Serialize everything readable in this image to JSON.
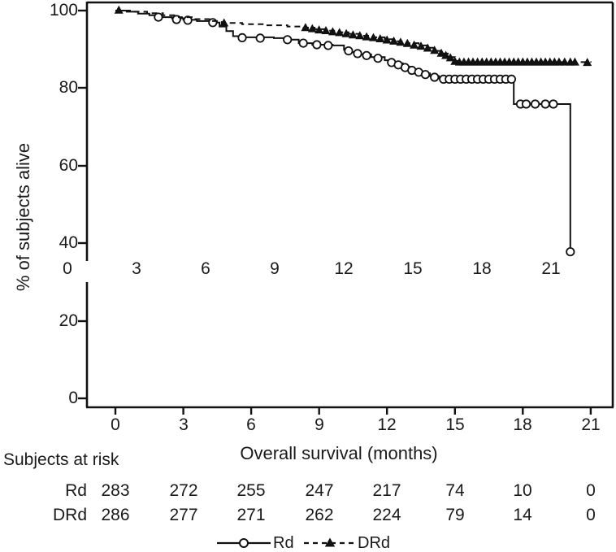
{
  "figure": {
    "y_axis": {
      "title": "% of subjects alive",
      "tick_labels": [
        "100",
        "80",
        "60",
        "40",
        "20",
        "0"
      ]
    },
    "x_axis": {
      "title": "Overall survival (months)",
      "tick_labels": [
        "0",
        "3",
        "6",
        "9",
        "12",
        "15",
        "18",
        "21"
      ]
    },
    "inner_axis": {
      "tick_labels": [
        "0",
        "3",
        "6",
        "9",
        "12",
        "15",
        "18",
        "21"
      ]
    },
    "risk_table": {
      "heading": "Subjects at risk",
      "rows": [
        {
          "label": "Rd",
          "counts": [
            "283",
            "272",
            "255",
            "247",
            "217",
            "74",
            "10",
            "0"
          ]
        },
        {
          "label": "DRd",
          "counts": [
            "286",
            "277",
            "271",
            "262",
            "224",
            "79",
            "14",
            "0"
          ]
        }
      ]
    }
  },
  "chart_data": {
    "type": "line",
    "subtype": "kaplan-meier-step",
    "title": "",
    "xlabel": "Overall survival (months)",
    "ylabel": "% of subjects alive",
    "x_ticks": [
      0,
      3,
      6,
      9,
      12,
      15,
      18,
      21
    ],
    "y_ticks": [
      0,
      20,
      40,
      60,
      80,
      100
    ],
    "xlim": [
      0,
      22
    ],
    "ylim": [
      0,
      100
    ],
    "grid": false,
    "legend_position": "bottom",
    "line_color": "#111111",
    "series": [
      {
        "name": "Rd",
        "line_style": "solid",
        "marker": "open-circle",
        "color": "#111111",
        "steps": [
          [
            0,
            100
          ],
          [
            0.5,
            99.7
          ],
          [
            1.0,
            99.2
          ],
          [
            1.5,
            98.8
          ],
          [
            2.0,
            98.3
          ],
          [
            2.5,
            98.0
          ],
          [
            3.0,
            97.6
          ],
          [
            3.6,
            97.3
          ],
          [
            4.2,
            96.9
          ],
          [
            4.6,
            95.9
          ],
          [
            4.9,
            94.7
          ],
          [
            5.2,
            93.4
          ],
          [
            5.5,
            93.1
          ],
          [
            7.0,
            92.9
          ],
          [
            7.7,
            92.5
          ],
          [
            8.1,
            91.6
          ],
          [
            8.7,
            91.2
          ],
          [
            9.6,
            91.0
          ],
          [
            10.1,
            89.9
          ],
          [
            10.4,
            89.3
          ],
          [
            10.8,
            88.7
          ],
          [
            11.3,
            88.0
          ],
          [
            11.9,
            87.2
          ],
          [
            12.3,
            86.4
          ],
          [
            12.7,
            85.5
          ],
          [
            13.1,
            84.6
          ],
          [
            13.5,
            83.8
          ],
          [
            13.9,
            83.1
          ],
          [
            14.3,
            82.5
          ],
          [
            14.6,
            82.3
          ],
          [
            17.6,
            82.3
          ],
          [
            17.6,
            75.9
          ],
          [
            20.1,
            75.9
          ],
          [
            20.1,
            37.8
          ]
        ],
        "censor_marks": [
          [
            1.9,
            98.3
          ],
          [
            2.7,
            97.7
          ],
          [
            3.2,
            97.5
          ],
          [
            4.3,
            96.9
          ],
          [
            5.6,
            93.0
          ],
          [
            6.4,
            92.9
          ],
          [
            7.6,
            92.5
          ],
          [
            8.3,
            91.6
          ],
          [
            8.9,
            91.2
          ],
          [
            9.4,
            91.0
          ],
          [
            10.3,
            89.6
          ],
          [
            10.7,
            88.9
          ],
          [
            11.1,
            88.4
          ],
          [
            11.6,
            87.7
          ],
          [
            12.2,
            86.6
          ],
          [
            12.5,
            86.0
          ],
          [
            12.8,
            85.3
          ],
          [
            13.1,
            84.6
          ],
          [
            13.4,
            84.1
          ],
          [
            13.7,
            83.5
          ],
          [
            14.1,
            82.8
          ],
          [
            14.5,
            82.3
          ],
          [
            14.75,
            82.3
          ],
          [
            15.0,
            82.3
          ],
          [
            15.25,
            82.3
          ],
          [
            15.5,
            82.3
          ],
          [
            15.75,
            82.3
          ],
          [
            16.0,
            82.3
          ],
          [
            16.25,
            82.3
          ],
          [
            16.5,
            82.3
          ],
          [
            16.75,
            82.3
          ],
          [
            17.0,
            82.3
          ],
          [
            17.25,
            82.3
          ],
          [
            17.5,
            82.3
          ],
          [
            17.9,
            75.9
          ],
          [
            18.15,
            75.9
          ],
          [
            18.55,
            75.9
          ],
          [
            19.0,
            75.9
          ],
          [
            19.35,
            75.9
          ],
          [
            20.1,
            37.8
          ]
        ]
      },
      {
        "name": "DRd",
        "line_style": "dashed",
        "marker": "filled-triangle",
        "color": "#111111",
        "steps": [
          [
            0,
            100
          ],
          [
            0.7,
            99.7
          ],
          [
            1.4,
            99.3
          ],
          [
            2.1,
            98.8
          ],
          [
            2.8,
            98.3
          ],
          [
            3.5,
            97.8
          ],
          [
            4.2,
            97.3
          ],
          [
            4.7,
            96.8
          ],
          [
            5.6,
            96.5
          ],
          [
            6.6,
            96.2
          ],
          [
            7.6,
            95.9
          ],
          [
            8.3,
            95.6
          ],
          [
            8.8,
            95.2
          ],
          [
            9.3,
            94.8
          ],
          [
            9.8,
            94.4
          ],
          [
            10.3,
            94.0
          ],
          [
            10.8,
            93.5
          ],
          [
            11.3,
            93.1
          ],
          [
            11.9,
            92.6
          ],
          [
            12.4,
            92.1
          ],
          [
            12.9,
            91.6
          ],
          [
            13.4,
            91.0
          ],
          [
            13.8,
            90.4
          ],
          [
            14.2,
            89.6
          ],
          [
            14.5,
            88.9
          ],
          [
            14.8,
            88.0
          ],
          [
            15.0,
            87.0
          ],
          [
            15.2,
            86.7
          ],
          [
            21.0,
            86.6
          ]
        ],
        "censor_marks": [
          [
            0.15,
            100.1
          ],
          [
            4.8,
            96.8
          ],
          [
            8.4,
            95.6
          ],
          [
            8.7,
            95.3
          ],
          [
            9.0,
            95.0
          ],
          [
            9.3,
            94.8
          ],
          [
            9.6,
            94.5
          ],
          [
            9.9,
            94.3
          ],
          [
            10.2,
            94.0
          ],
          [
            10.5,
            93.7
          ],
          [
            10.8,
            93.5
          ],
          [
            11.1,
            93.2
          ],
          [
            11.4,
            93.0
          ],
          [
            11.7,
            92.7
          ],
          [
            12.0,
            92.4
          ],
          [
            12.3,
            92.1
          ],
          [
            12.6,
            91.8
          ],
          [
            12.9,
            91.5
          ],
          [
            13.2,
            91.1
          ],
          [
            13.5,
            90.8
          ],
          [
            13.8,
            90.3
          ],
          [
            14.1,
            89.7
          ],
          [
            14.4,
            89.0
          ],
          [
            14.6,
            88.4
          ],
          [
            14.8,
            87.8
          ],
          [
            15.0,
            86.9
          ],
          [
            15.2,
            86.7
          ],
          [
            15.4,
            86.7
          ],
          [
            15.6,
            86.7
          ],
          [
            15.8,
            86.7
          ],
          [
            16.0,
            86.7
          ],
          [
            16.2,
            86.7
          ],
          [
            16.4,
            86.7
          ],
          [
            16.6,
            86.7
          ],
          [
            16.8,
            86.7
          ],
          [
            17.0,
            86.7
          ],
          [
            17.2,
            86.7
          ],
          [
            17.4,
            86.7
          ],
          [
            17.6,
            86.7
          ],
          [
            17.8,
            86.7
          ],
          [
            18.0,
            86.7
          ],
          [
            18.2,
            86.7
          ],
          [
            18.4,
            86.7
          ],
          [
            18.6,
            86.7
          ],
          [
            18.8,
            86.7
          ],
          [
            19.0,
            86.7
          ],
          [
            19.2,
            86.7
          ],
          [
            19.4,
            86.7
          ],
          [
            19.6,
            86.7
          ],
          [
            19.85,
            86.7
          ],
          [
            20.1,
            86.7
          ],
          [
            20.3,
            86.7
          ],
          [
            20.85,
            86.6
          ]
        ]
      }
    ],
    "at_risk": {
      "months": [
        0,
        3,
        6,
        9,
        12,
        15,
        18,
        21
      ],
      "Rd": [
        283,
        272,
        255,
        247,
        217,
        74,
        10,
        0
      ],
      "DRd": [
        286,
        277,
        271,
        262,
        224,
        79,
        14,
        0
      ]
    }
  }
}
